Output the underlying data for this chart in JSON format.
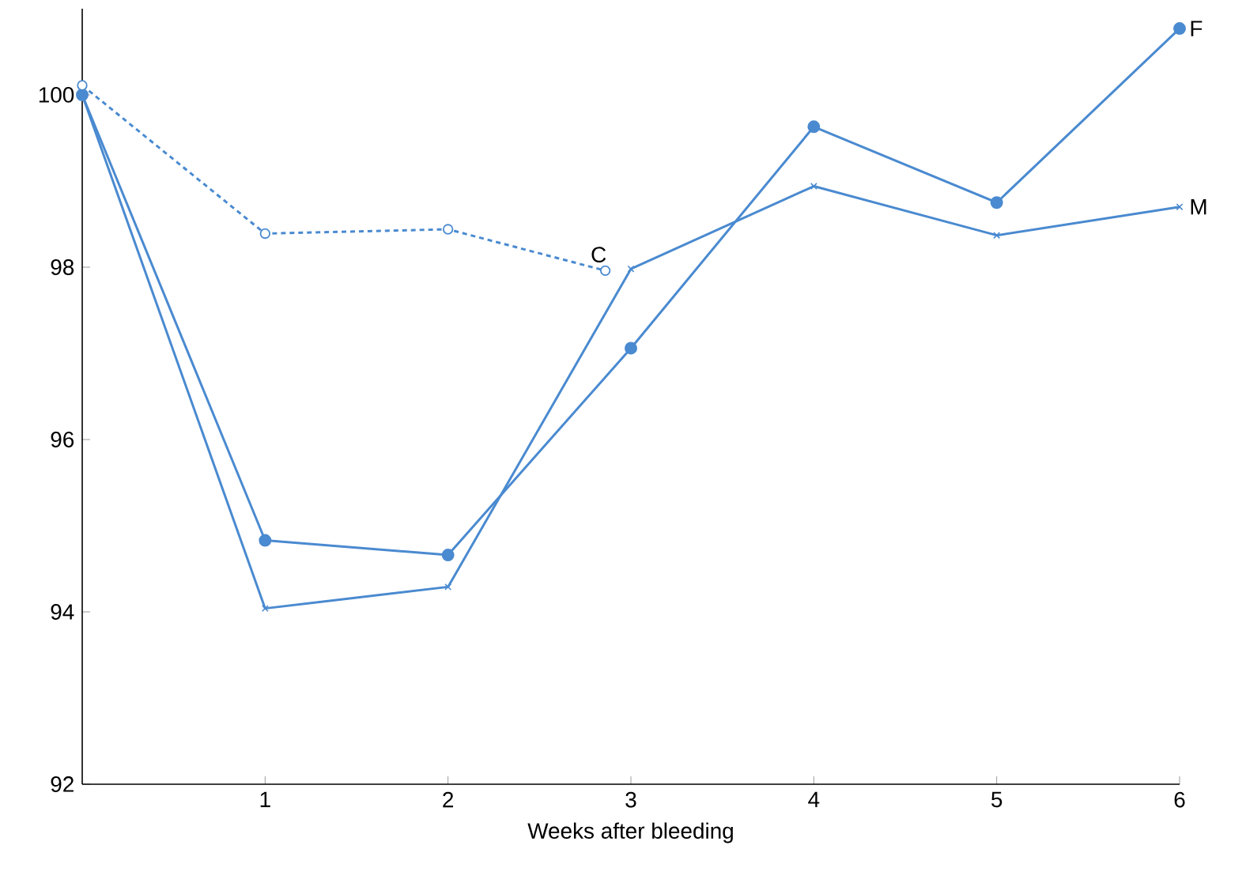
{
  "chart_data": {
    "type": "line",
    "xlabel": "Weeks after bleeding",
    "xlim": [
      0,
      6
    ],
    "xticks": [
      1,
      2,
      3,
      4,
      5,
      6
    ],
    "ylim": [
      92,
      101
    ],
    "yticks": [
      92,
      94,
      96,
      98,
      100
    ],
    "grid": false,
    "series": [
      {
        "name": "F",
        "color": "#4a8ad0",
        "marker": "circle",
        "line_style": "solid",
        "x": [
          0,
          1,
          2,
          3,
          4,
          5,
          6
        ],
        "values": [
          100.0,
          94.83,
          94.66,
          97.06,
          99.63,
          98.75,
          100.77
        ]
      },
      {
        "name": "M",
        "color": "#4a8ad0",
        "marker": "cross",
        "line_style": "solid",
        "x": [
          0,
          1,
          2,
          3,
          4,
          5,
          6
        ],
        "values": [
          100.0,
          94.04,
          94.29,
          97.98,
          98.94,
          98.37,
          98.7
        ]
      },
      {
        "name": "C",
        "color": "#4a8ad0",
        "marker": "circle",
        "line_style": "dashed",
        "x": [
          0,
          1,
          2,
          2.86
        ],
        "values": [
          100.11,
          98.39,
          98.44,
          97.96
        ]
      }
    ]
  }
}
